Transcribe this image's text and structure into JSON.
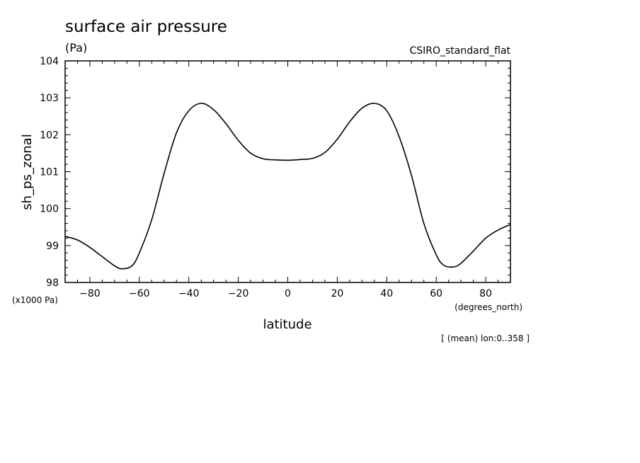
{
  "chart_data": {
    "type": "line",
    "title": "surface air pressure",
    "units": "(Pa)",
    "dataset": "CSIRO_standard_flat",
    "xlabel": "latitude",
    "ylabel": "sh_ps_zonal",
    "x_units": "(degrees_north)",
    "y_scale_note": "(x1000 Pa)",
    "footnote": "[ (mean) lon:0..358 ]",
    "xlim": [
      -90,
      90
    ],
    "ylim": [
      98,
      104
    ],
    "x_ticks": [
      "-80",
      "-60",
      "-40",
      "-20",
      "0",
      "20",
      "40",
      "60",
      "80"
    ],
    "y_ticks": [
      "98",
      "99",
      "100",
      "101",
      "102",
      "103",
      "104"
    ],
    "grid": false,
    "line_color": "#000000",
    "x": [
      -90,
      -85,
      -80,
      -75,
      -70,
      -67,
      -63,
      -60,
      -55,
      -50,
      -45,
      -40,
      -35,
      -30,
      -25,
      -20,
      -15,
      -10,
      -5,
      0,
      5,
      10,
      15,
      20,
      25,
      30,
      35,
      40,
      45,
      50,
      55,
      60,
      63,
      67,
      70,
      75,
      80,
      85,
      90
    ],
    "y": [
      99.25,
      99.15,
      98.95,
      98.7,
      98.45,
      98.37,
      98.45,
      98.8,
      99.7,
      100.95,
      102.05,
      102.65,
      102.85,
      102.68,
      102.3,
      101.85,
      101.5,
      101.35,
      101.32,
      101.31,
      101.33,
      101.36,
      101.52,
      101.88,
      102.35,
      102.72,
      102.85,
      102.65,
      101.95,
      100.9,
      99.6,
      98.75,
      98.47,
      98.42,
      98.52,
      98.85,
      99.2,
      99.42,
      99.57
    ]
  }
}
